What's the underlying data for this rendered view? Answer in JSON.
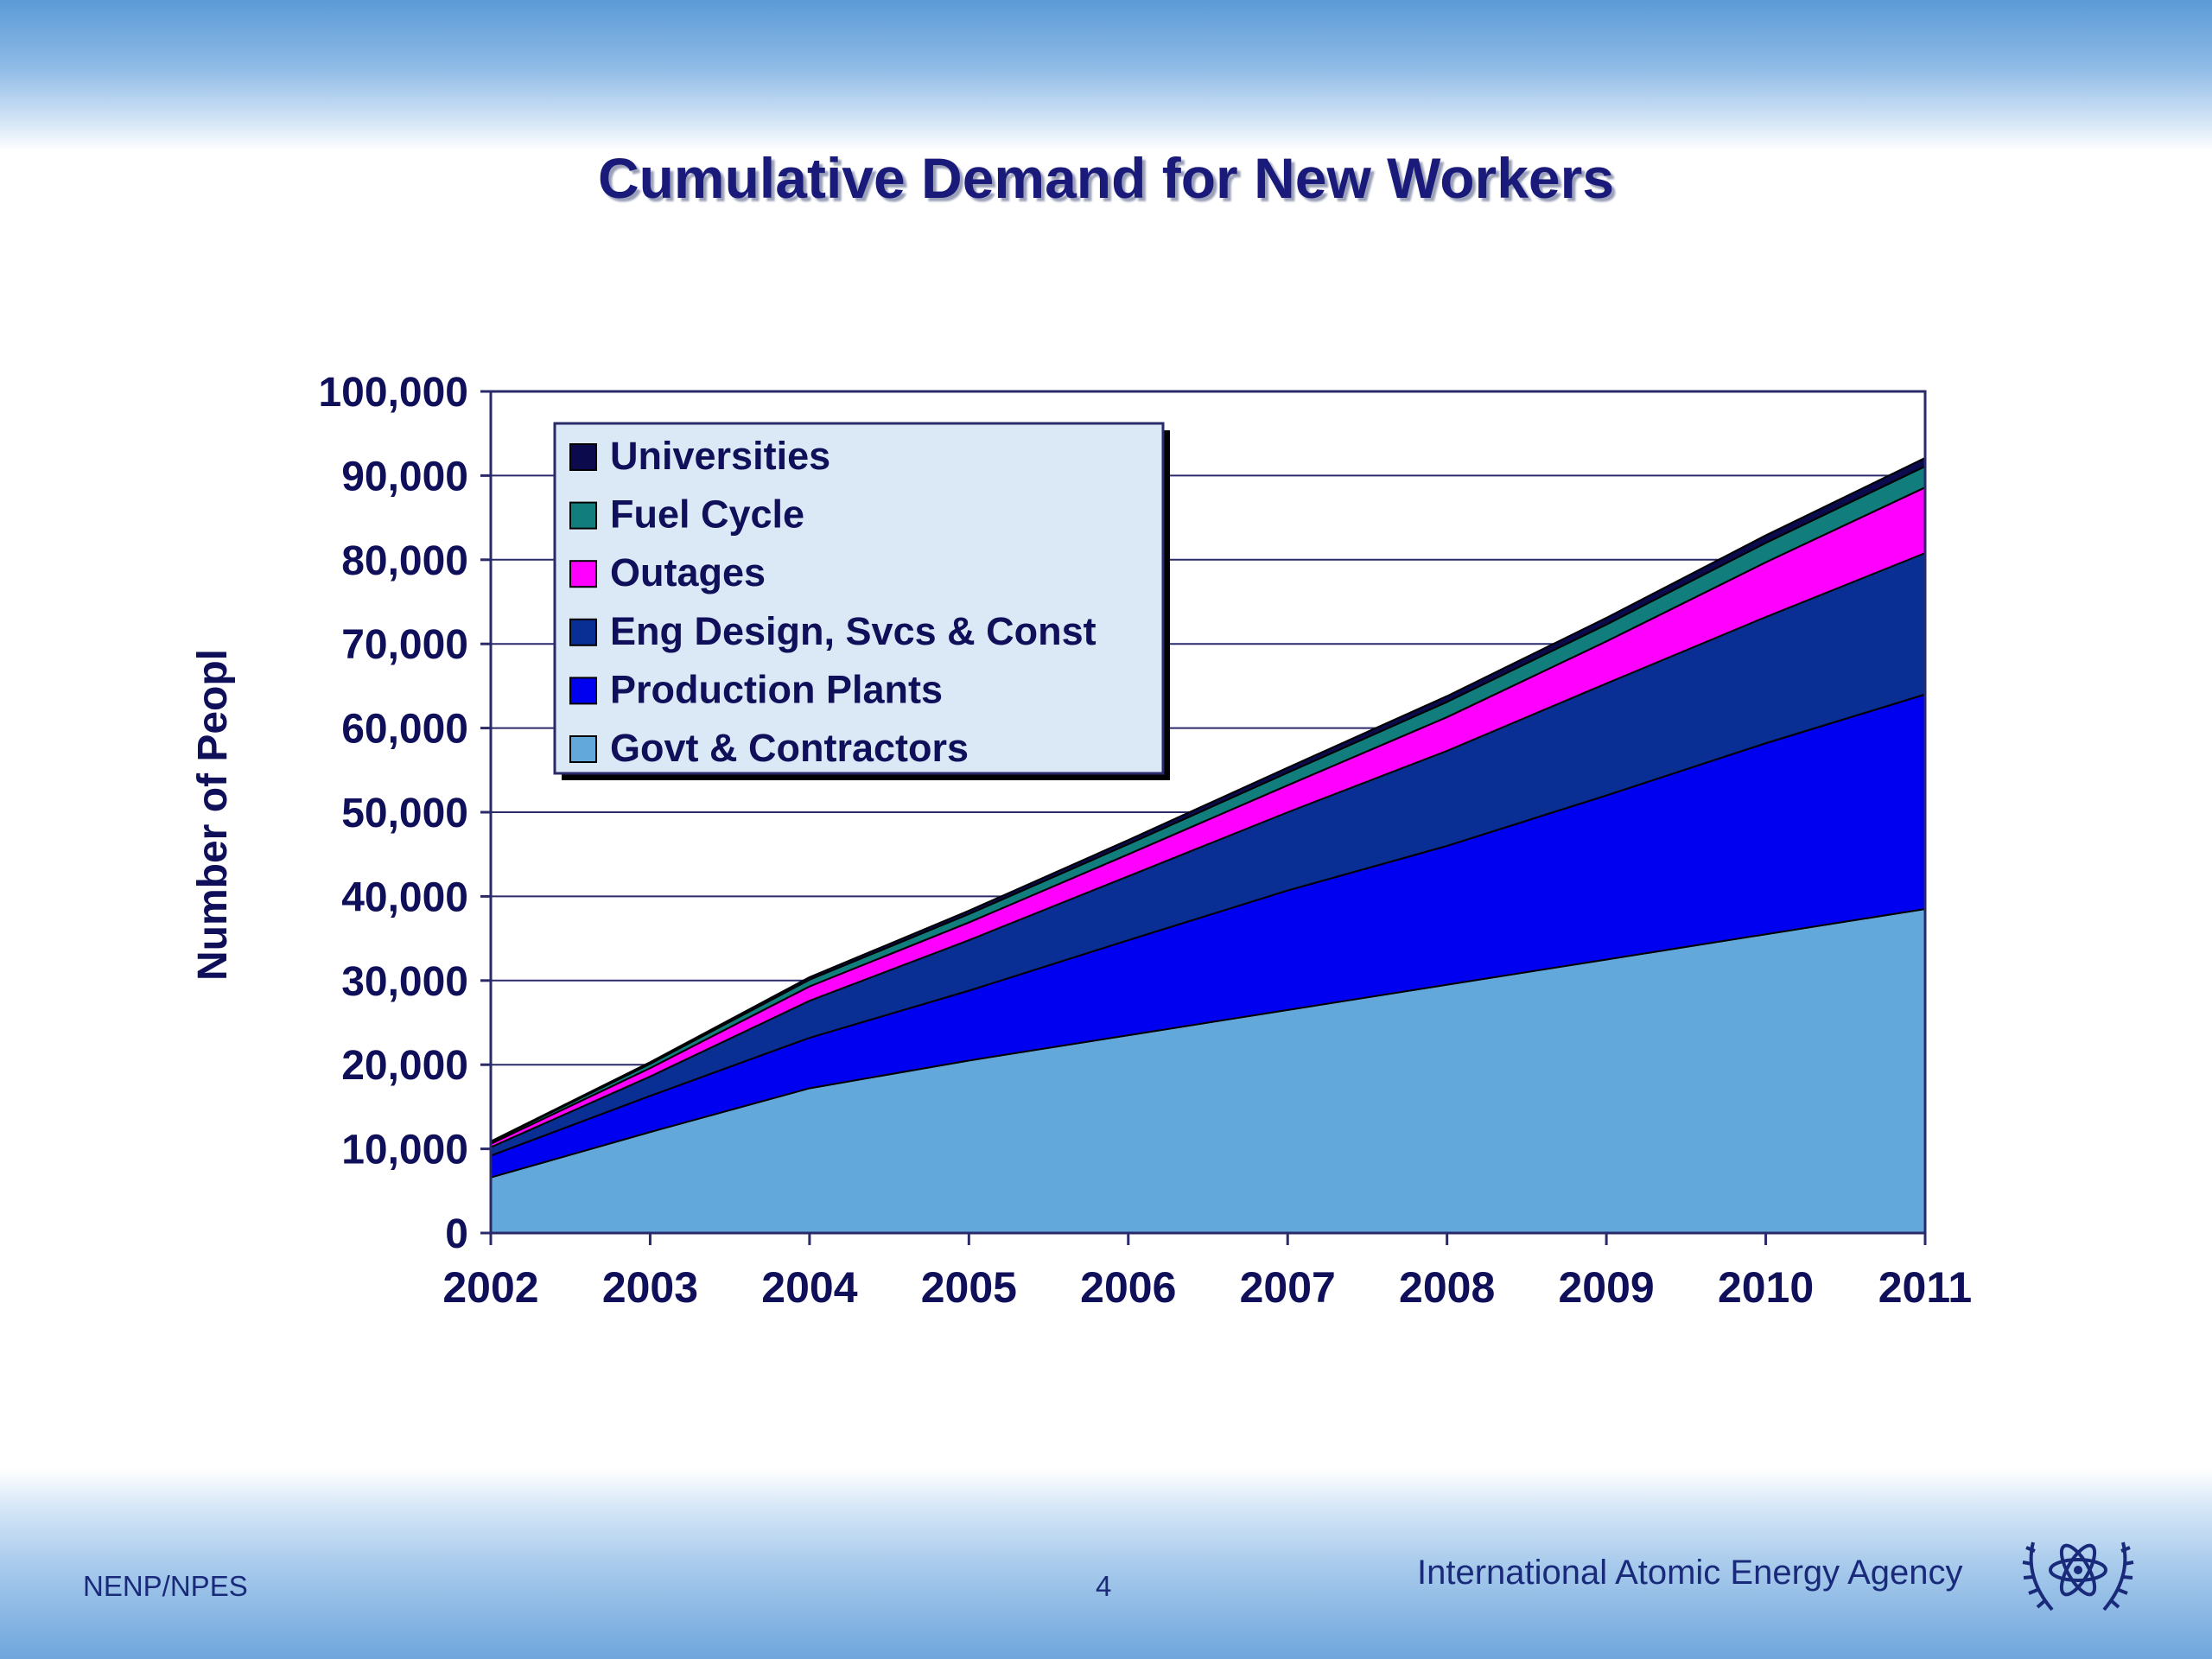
{
  "slide": {
    "title": "Cumulative Demand for New Workers",
    "footer_left": "NENP/NPES",
    "page_number": "4",
    "organization": "International Atomic Energy Agency"
  },
  "colors": {
    "title": "#1a1a7a",
    "axis_text": "#10105a",
    "legend_bg": "#dbe8f6"
  },
  "chart_data": {
    "type": "area",
    "stacked": true,
    "title": "Cumulative Demand for New Workers",
    "xlabel": "",
    "ylabel": "Number of Peopl",
    "x": [
      "2002",
      "2003",
      "2004",
      "2005",
      "2006",
      "2007",
      "2008",
      "2009",
      "2010",
      "2011"
    ],
    "ylim": [
      0,
      100000
    ],
    "yticks": [
      0,
      10000,
      20000,
      30000,
      40000,
      50000,
      60000,
      70000,
      80000,
      90000,
      100000
    ],
    "ytick_labels": [
      "0",
      "10,000",
      "20,000",
      "30,000",
      "40,000",
      "50,000",
      "60,000",
      "70,000",
      "80,000",
      "90,000",
      "100,000"
    ],
    "grid": "horizontal",
    "legend_position": "top-left",
    "series": [
      {
        "name": "Govt & Contractors",
        "color": "#63a8da",
        "values": [
          6600,
          12000,
          17200,
          20500,
          23500,
          26500,
          29500,
          32500,
          35500,
          38500
        ]
      },
      {
        "name": "Production Plants",
        "color": "#0000f0",
        "values": [
          2600,
          4300,
          6000,
          8300,
          11300,
          14200,
          16500,
          19500,
          22700,
          25500
        ]
      },
      {
        "name": "Eng Design, Svcs & Const",
        "color": "#0a2f94",
        "values": [
          1000,
          2300,
          4400,
          6000,
          7600,
          9300,
          11300,
          13300,
          15000,
          16800
        ]
      },
      {
        "name": "Outages",
        "color": "#ff00ff",
        "values": [
          400,
          1000,
          1700,
          2100,
          2600,
          3200,
          4000,
          5000,
          6500,
          7800
        ]
      },
      {
        "name": "Fuel Cycle",
        "color": "#127d7d",
        "values": [
          200,
          500,
          800,
          1000,
          1200,
          1500,
          1800,
          2000,
          2300,
          2500
        ]
      },
      {
        "name": "Universities",
        "color": "#0a0a4d",
        "values": [
          100,
          200,
          300,
          400,
          500,
          600,
          700,
          800,
          900,
          1000
        ]
      }
    ]
  }
}
